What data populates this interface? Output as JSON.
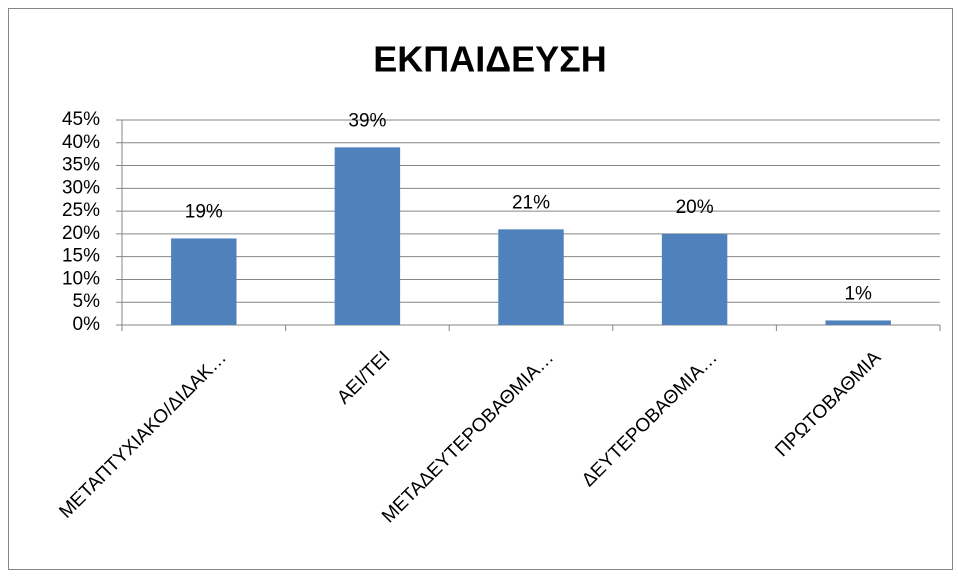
{
  "chart_data": {
    "type": "bar",
    "title": "ΕΚΠΑΙΔΕΥΣΗ",
    "categories": [
      "ΜΕΤΑΠΤΥΧΙΑΚΟ/ΔΙΔΑΚ…",
      "ΑΕΙ/ΤΕΙ",
      "ΜΕΤΑΔΕΥΤΕΡΟΒΑΘΜΙΑ…",
      "ΔΕΥΤΕΡΟΒΑΘΜΙΑ…",
      "ΠΡΩΤΟΒΑΘΜΙΑ"
    ],
    "values": [
      19,
      39,
      21,
      20,
      1
    ],
    "value_labels": [
      "19%",
      "39%",
      "21%",
      "20%",
      "1%"
    ],
    "color": "#4f81bd",
    "ylim": [
      0,
      45
    ],
    "yticks": [
      {
        "value": 0,
        "label": "0%"
      },
      {
        "value": 5,
        "label": "5%"
      },
      {
        "value": 10,
        "label": "10%"
      },
      {
        "value": 15,
        "label": "15%"
      },
      {
        "value": 20,
        "label": "20%"
      },
      {
        "value": 25,
        "label": "25%"
      },
      {
        "value": 30,
        "label": "30%"
      },
      {
        "value": 35,
        "label": "35%"
      },
      {
        "value": 40,
        "label": "40%"
      },
      {
        "value": 45,
        "label": "45%"
      }
    ],
    "grid": true
  }
}
